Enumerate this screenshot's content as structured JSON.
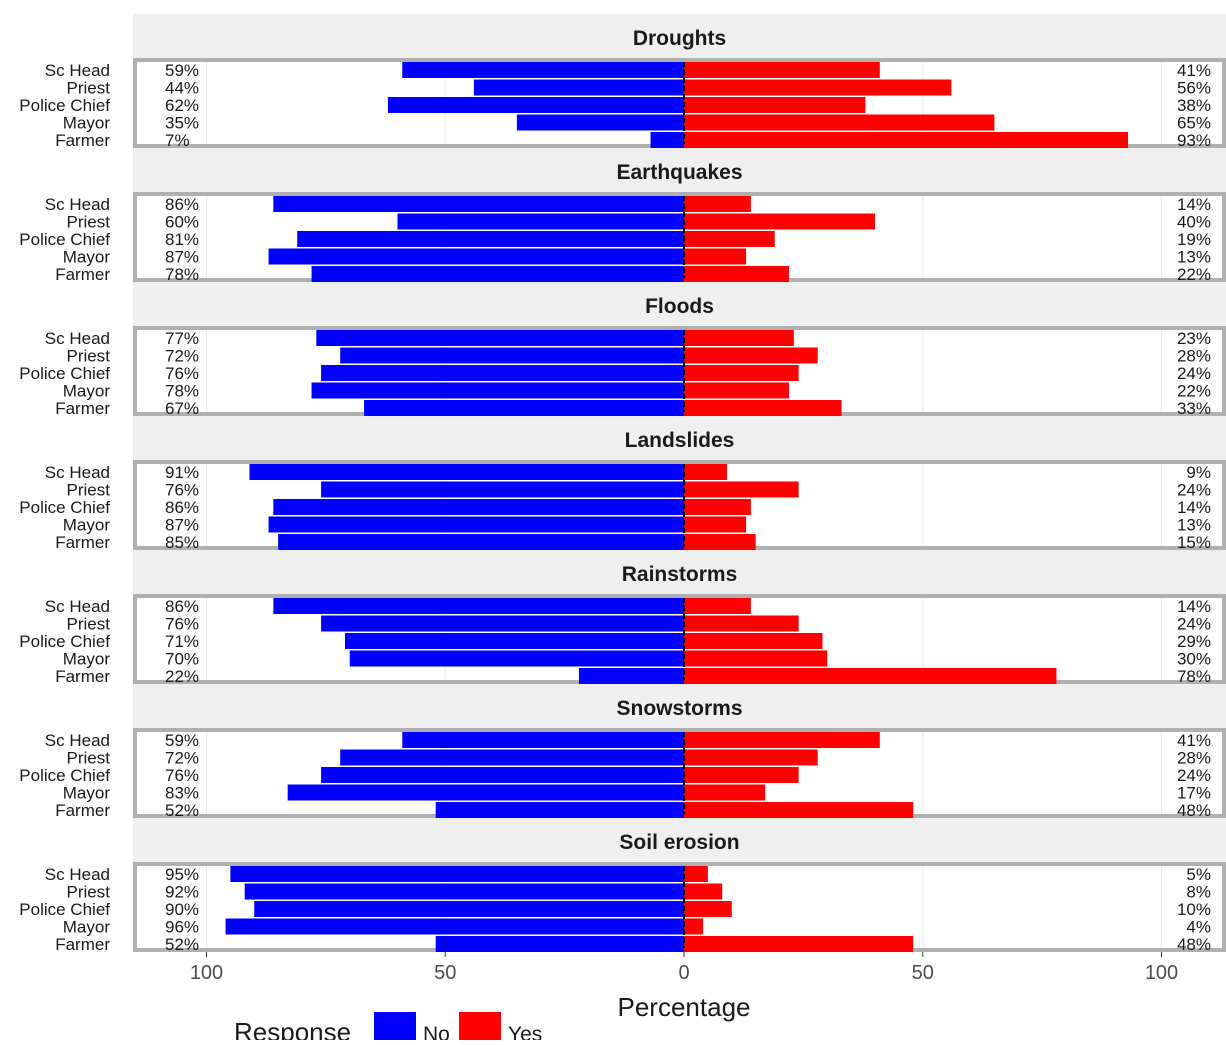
{
  "chart_data": {
    "type": "bar",
    "subtype": "diverging-horizontal-bar, faceted",
    "xlabel": "Percentage",
    "x_tick_labels": [
      "100",
      "50",
      "0",
      "50",
      "100"
    ],
    "xlim": [
      -100,
      100
    ],
    "categories": [
      "Sc Head",
      "Priest",
      "Police Chief",
      "Mayor",
      "Farmer"
    ],
    "legend": {
      "title": "Response",
      "position": "bottom",
      "entries": [
        {
          "label": "No",
          "color": "#0000ff"
        },
        {
          "label": "Yes",
          "color": "#ff0000"
        }
      ]
    },
    "colors": {
      "No": "#0000ff",
      "Yes": "#ff0000",
      "strip": "#efefef",
      "panel_border": "#b0b0b0"
    },
    "panels": [
      {
        "title": "Droughts",
        "no": [
          59,
          44,
          62,
          35,
          7
        ],
        "yes": [
          41,
          56,
          38,
          65,
          93
        ],
        "no_labels": [
          "59%",
          "44%",
          "62%",
          "35%",
          "7%"
        ],
        "yes_labels": [
          "41%",
          "56%",
          "38%",
          "65%",
          "93%"
        ]
      },
      {
        "title": "Earthquakes",
        "no": [
          86,
          60,
          81,
          87,
          78
        ],
        "yes": [
          14,
          40,
          19,
          13,
          22
        ],
        "no_labels": [
          "86%",
          "60%",
          "81%",
          "87%",
          "78%"
        ],
        "yes_labels": [
          "14%",
          "40%",
          "19%",
          "13%",
          "22%"
        ]
      },
      {
        "title": "Floods",
        "no": [
          77,
          72,
          76,
          78,
          67
        ],
        "yes": [
          23,
          28,
          24,
          22,
          33
        ],
        "no_labels": [
          "77%",
          "72%",
          "76%",
          "78%",
          "67%"
        ],
        "yes_labels": [
          "23%",
          "28%",
          "24%",
          "22%",
          "33%"
        ]
      },
      {
        "title": "Landslides",
        "no": [
          91,
          76,
          86,
          87,
          85
        ],
        "yes": [
          9,
          24,
          14,
          13,
          15
        ],
        "no_labels": [
          "91%",
          "76%",
          "86%",
          "87%",
          "85%"
        ],
        "yes_labels": [
          "9%",
          "24%",
          "14%",
          "13%",
          "15%"
        ]
      },
      {
        "title": "Rainstorms",
        "no": [
          86,
          76,
          71,
          70,
          22
        ],
        "yes": [
          14,
          24,
          29,
          30,
          78
        ],
        "no_labels": [
          "86%",
          "76%",
          "71%",
          "70%",
          "22%"
        ],
        "yes_labels": [
          "14%",
          "24%",
          "29%",
          "30%",
          "78%"
        ]
      },
      {
        "title": "Snowstorms",
        "no": [
          59,
          72,
          76,
          83,
          52
        ],
        "yes": [
          41,
          28,
          24,
          17,
          48
        ],
        "no_labels": [
          "59%",
          "72%",
          "76%",
          "83%",
          "52%"
        ],
        "yes_labels": [
          "41%",
          "28%",
          "24%",
          "17%",
          "48%"
        ]
      },
      {
        "title": "Soil erosion",
        "no": [
          95,
          92,
          90,
          96,
          52
        ],
        "yes": [
          5,
          8,
          10,
          4,
          48
        ],
        "no_labels": [
          "95%",
          "92%",
          "90%",
          "96%",
          "52%"
        ],
        "yes_labels": [
          "5%",
          "8%",
          "10%",
          "4%",
          "48%"
        ]
      }
    ]
  }
}
